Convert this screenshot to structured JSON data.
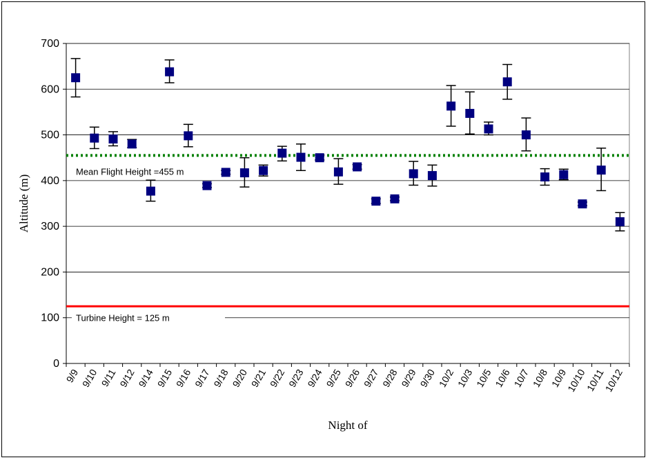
{
  "chart_data": {
    "type": "scatter",
    "title": "",
    "xlabel": "Night of",
    "ylabel": "Altitude (m)",
    "ylim": [
      0,
      700
    ],
    "yticks": [
      0,
      100,
      200,
      300,
      400,
      500,
      600,
      700
    ],
    "grid": "horizontal",
    "categories": [
      "9/9",
      "9/10",
      "9/11",
      "9/12",
      "9/14",
      "9/15",
      "9/16",
      "9/17",
      "9/18",
      "9/20",
      "9/21",
      "9/22",
      "9/23",
      "9/24",
      "9/25",
      "9/26",
      "9/27",
      "9/28",
      "9/29",
      "9/30",
      "10/2",
      "10/3",
      "10/5",
      "10/6",
      "10/7",
      "10/8",
      "10/9",
      "10/10",
      "10/11",
      "10/12"
    ],
    "series": [
      {
        "values": [
          625,
          493,
          491,
          480,
          377,
          638,
          498,
          389,
          418,
          417,
          422,
          460,
          451,
          450,
          419,
          430,
          355,
          360,
          415,
          411,
          563,
          547,
          513,
          616,
          500,
          408,
          413,
          349,
          423,
          310
        ],
        "error_low": [
          583,
          470,
          476,
          472,
          355,
          614,
          474,
          385,
          414,
          386,
          410,
          443,
          422,
          445,
          392,
          425,
          350,
          356,
          390,
          388,
          519,
          502,
          500,
          578,
          465,
          390,
          402,
          345,
          378,
          290
        ],
        "error_high": [
          667,
          517,
          507,
          490,
          401,
          664,
          523,
          393,
          422,
          450,
          434,
          475,
          480,
          456,
          448,
          435,
          360,
          364,
          442,
          434,
          608,
          594,
          528,
          654,
          537,
          426,
          425,
          353,
          471,
          330
        ],
        "color": "#000080"
      }
    ],
    "reference_lines": [
      {
        "label": "Mean Flight Height =455 m",
        "value": 455,
        "style": "dotted",
        "color": "#008000"
      },
      {
        "label": "Turbine Height = 125 m",
        "value": 125,
        "style": "solid",
        "color": "#ff0000"
      }
    ]
  }
}
